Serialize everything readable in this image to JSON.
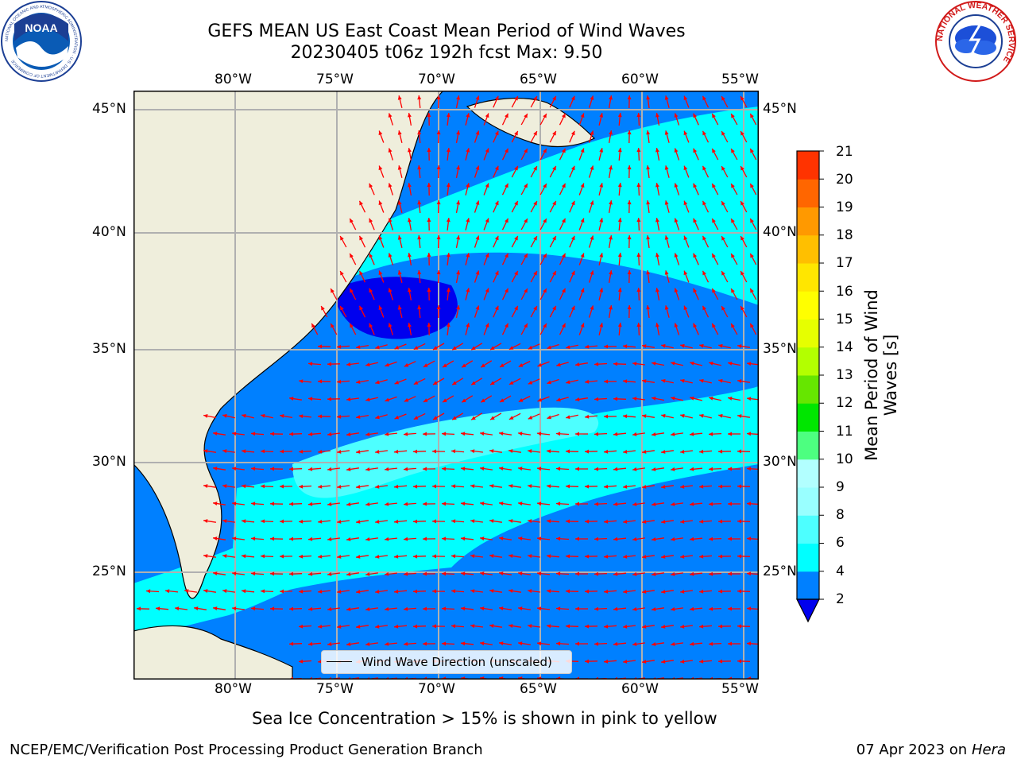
{
  "header": {
    "title_line1": "GEFS MEAN US East Coast Mean Period of Wind Waves",
    "title_line2": "20230405 t06z 192h fcst   Max: 9.50"
  },
  "logos": {
    "left": "NOAA",
    "left_ring": "NATIONAL OCEANIC AND ATMOSPHERIC ADMINISTRATION · U.S. DEPARTMENT OF COMMERCE",
    "right_ring": "NATIONAL WEATHER SERVICE"
  },
  "map": {
    "lon_labels": [
      "80°W",
      "75°W",
      "70°W",
      "65°W",
      "60°W",
      "55°W"
    ],
    "lat_labels": [
      "45°N",
      "40°N",
      "35°N",
      "30°N",
      "25°N"
    ],
    "legend_label": "Wind Wave Direction (unscaled)",
    "colors": {
      "land": "#efeedc",
      "sea_light": "#4dffff",
      "sea_cyan": "#00ffff",
      "sea_blue": "#0080ff",
      "sea_deep": "#0000ee",
      "arrow": "#ff0000",
      "grid": "#b0b0b0"
    }
  },
  "colorbar": {
    "label": "Mean Period of Wind Waves [s]",
    "ticks": [
      "2",
      "4",
      "6",
      "8",
      "9",
      "10",
      "11",
      "12",
      "13",
      "14",
      "15",
      "16",
      "17",
      "18",
      "19",
      "20",
      "21"
    ],
    "colors": [
      "#0080ff",
      "#00ffff",
      "#4dffff",
      "#99ffff",
      "#b2ffff",
      "#4dff80",
      "#00e600",
      "#66e600",
      "#b3ff00",
      "#e6ff00",
      "#ffff00",
      "#ffe600",
      "#ffbf00",
      "#ff9900",
      "#ff6600",
      "#ff3300",
      "#ff0000"
    ],
    "under_color": "#0000ee"
  },
  "footer": {
    "note": "Sea Ice Concentration > 15% is shown in pink to yellow",
    "credit": "NCEP/EMC/Verification Post Processing Product Generation Branch",
    "date": "07 Apr 2023 on ",
    "host": "Hera"
  }
}
